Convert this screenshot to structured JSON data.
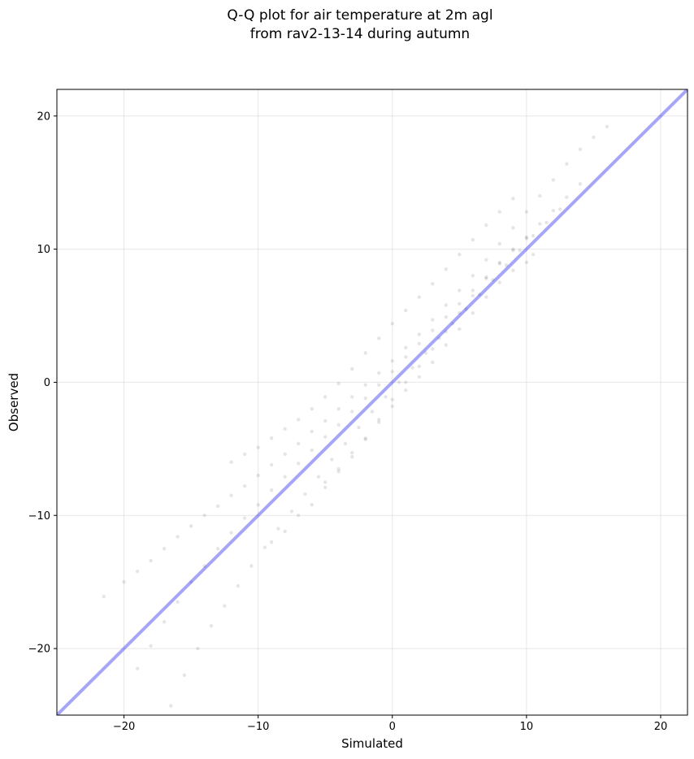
{
  "chart_data": {
    "type": "scatter",
    "title": [
      "Q-Q plot for air temperature at 2m agl",
      "from rav2-13-14 during autumn"
    ],
    "xlabel": "Simulated",
    "ylabel": "Observed",
    "xlim": [
      -25,
      22
    ],
    "ylim": [
      -25,
      22
    ],
    "xticks": [
      -20,
      -10,
      0,
      10,
      20
    ],
    "yticks": [
      -20,
      -10,
      0,
      10,
      20
    ],
    "xtick_labels": [
      "−20",
      "−10",
      "0",
      "10",
      "20"
    ],
    "ytick_labels": [
      "−20",
      "−10",
      "0",
      "10",
      "20"
    ],
    "grid": true,
    "point_color": "#000000",
    "point_alpha": 0.1,
    "reference_line": {
      "from": [
        -25,
        -25
      ],
      "to": [
        22,
        22
      ],
      "color": "#0000ee",
      "alpha": 0.35
    },
    "series": [
      {
        "points": [
          [
            -21.5,
            -16.1
          ],
          [
            -20.0,
            -15.0
          ],
          [
            -19.0,
            -14.2
          ],
          [
            -18.0,
            -13.4
          ],
          [
            -17.0,
            -12.5
          ],
          [
            -16.0,
            -11.6
          ],
          [
            -15.0,
            -10.8
          ],
          [
            -14.0,
            -10.0
          ],
          [
            -13.0,
            -9.3
          ],
          [
            -12.0,
            -8.5
          ],
          [
            -11.0,
            -7.8
          ],
          [
            -10.0,
            -7.0
          ],
          [
            -9.0,
            -6.2
          ],
          [
            -8.0,
            -5.4
          ],
          [
            -7.0,
            -4.6
          ],
          [
            -6.0,
            -3.7
          ],
          [
            -5.0,
            -2.9
          ],
          [
            -4.0,
            -2.0
          ],
          [
            -3.0,
            -1.1
          ],
          [
            -2.0,
            -0.2
          ],
          [
            -1.0,
            0.7
          ],
          [
            0.0,
            1.6
          ],
          [
            1.0,
            2.6
          ],
          [
            2.0,
            3.6
          ],
          [
            3.0,
            4.7
          ],
          [
            4.0,
            5.8
          ],
          [
            5.0,
            6.9
          ],
          [
            6.0,
            8.0
          ],
          [
            7.0,
            9.2
          ],
          [
            8.0,
            10.4
          ],
          [
            9.0,
            11.6
          ],
          [
            10.0,
            12.8
          ],
          [
            11.0,
            14.0
          ],
          [
            12.0,
            15.2
          ],
          [
            13.0,
            16.4
          ],
          [
            14.0,
            17.5
          ],
          [
            15.0,
            18.4
          ],
          [
            16.0,
            19.2
          ]
        ]
      },
      {
        "points": [
          [
            -19.0,
            -21.5
          ],
          [
            -18.0,
            -19.8
          ],
          [
            -17.0,
            -18.0
          ],
          [
            -16.0,
            -16.5
          ],
          [
            -15.0,
            -15.0
          ],
          [
            -14.0,
            -13.8
          ],
          [
            -13.0,
            -12.5
          ],
          [
            -12.0,
            -11.3
          ],
          [
            -11.0,
            -10.2
          ],
          [
            -10.0,
            -9.2
          ],
          [
            -9.0,
            -8.1
          ],
          [
            -8.0,
            -7.1
          ],
          [
            -7.0,
            -6.1
          ],
          [
            -6.0,
            -5.1
          ],
          [
            -5.0,
            -4.1
          ],
          [
            -4.0,
            -3.2
          ],
          [
            -3.0,
            -2.2
          ],
          [
            -2.0,
            -1.2
          ],
          [
            -1.0,
            -0.2
          ],
          [
            0.0,
            0.8
          ],
          [
            1.0,
            1.9
          ],
          [
            2.0,
            2.9
          ],
          [
            3.0,
            3.9
          ],
          [
            4.0,
            4.9
          ],
          [
            5.0,
            5.9
          ],
          [
            6.0,
            6.9
          ],
          [
            7.0,
            7.9
          ],
          [
            8.0,
            8.9
          ],
          [
            9.0,
            9.9
          ],
          [
            10.0,
            10.9
          ],
          [
            11.0,
            11.9
          ],
          [
            12.0,
            12.9
          ],
          [
            13.0,
            13.9
          ],
          [
            14.0,
            14.9
          ]
        ]
      },
      {
        "points": [
          [
            -16.5,
            -24.3
          ],
          [
            -15.5,
            -22.0
          ],
          [
            -14.5,
            -20.0
          ],
          [
            -13.5,
            -18.3
          ],
          [
            -12.5,
            -16.8
          ],
          [
            -11.5,
            -15.3
          ],
          [
            -10.5,
            -13.8
          ],
          [
            -9.5,
            -12.4
          ],
          [
            -8.5,
            -11.0
          ],
          [
            -7.5,
            -9.7
          ],
          [
            -6.5,
            -8.4
          ],
          [
            -5.5,
            -7.1
          ],
          [
            -4.5,
            -5.8
          ],
          [
            -3.5,
            -4.6
          ],
          [
            -2.5,
            -3.4
          ],
          [
            -1.5,
            -2.2
          ],
          [
            -0.5,
            -1.1
          ],
          [
            0.5,
            0.0
          ],
          [
            1.5,
            1.1
          ],
          [
            2.5,
            2.2
          ],
          [
            3.5,
            3.3
          ],
          [
            4.5,
            4.4
          ],
          [
            5.5,
            5.5
          ],
          [
            6.5,
            6.6
          ],
          [
            7.5,
            7.7
          ],
          [
            8.5,
            8.8
          ],
          [
            9.5,
            9.9
          ],
          [
            10.5,
            11.0
          ],
          [
            11.5,
            12.0
          ],
          [
            12.5,
            13.0
          ]
        ]
      },
      {
        "points": [
          [
            -12.0,
            -6.0
          ],
          [
            -11.0,
            -5.4
          ],
          [
            -10.0,
            -4.9
          ],
          [
            -9.0,
            -4.2
          ],
          [
            -8.0,
            -3.5
          ],
          [
            -7.0,
            -2.8
          ],
          [
            -6.0,
            -2.0
          ],
          [
            -5.0,
            -1.1
          ],
          [
            -4.0,
            -0.1
          ],
          [
            -3.0,
            1.0
          ],
          [
            -2.0,
            2.2
          ],
          [
            -1.0,
            3.3
          ],
          [
            0.0,
            4.4
          ],
          [
            1.0,
            5.4
          ],
          [
            2.0,
            6.4
          ],
          [
            3.0,
            7.4
          ],
          [
            4.0,
            8.5
          ],
          [
            5.0,
            9.6
          ],
          [
            6.0,
            10.7
          ],
          [
            7.0,
            11.8
          ],
          [
            8.0,
            12.8
          ],
          [
            9.0,
            13.8
          ]
        ]
      },
      {
        "points": [
          [
            -5.0,
            -7.5
          ],
          [
            -4.0,
            -6.5
          ],
          [
            -3.0,
            -5.3
          ],
          [
            -2.0,
            -4.3
          ],
          [
            -1.0,
            -3.0
          ],
          [
            0.0,
            -1.8
          ],
          [
            1.0,
            -0.6
          ],
          [
            2.0,
            0.4
          ],
          [
            3.0,
            1.5
          ],
          [
            4.0,
            2.8
          ],
          [
            5.0,
            4.0
          ],
          [
            6.0,
            5.2
          ],
          [
            7.0,
            6.4
          ],
          [
            8.0,
            7.5
          ],
          [
            9.0,
            8.4
          ],
          [
            10.0,
            9.0
          ],
          [
            10.5,
            9.6
          ]
        ]
      },
      {
        "points": [
          [
            -9.0,
            -12.0
          ],
          [
            -8.0,
            -11.2
          ],
          [
            -7.0,
            -10.0
          ],
          [
            -6.0,
            -9.2
          ],
          [
            -5.0,
            -7.9
          ],
          [
            -4.0,
            -6.7
          ],
          [
            -3.0,
            -5.6
          ],
          [
            -2.0,
            -4.2
          ],
          [
            -1.0,
            -2.8
          ],
          [
            0.0,
            -1.3
          ],
          [
            1.0,
            0.0
          ],
          [
            2.0,
            1.2
          ],
          [
            3.0,
            2.5
          ],
          [
            4.0,
            3.8
          ],
          [
            5.0,
            5.2
          ],
          [
            6.0,
            6.5
          ],
          [
            7.0,
            7.8
          ],
          [
            8.0,
            9.0
          ],
          [
            9.0,
            10.0
          ],
          [
            10.0,
            10.8
          ]
        ]
      }
    ]
  }
}
